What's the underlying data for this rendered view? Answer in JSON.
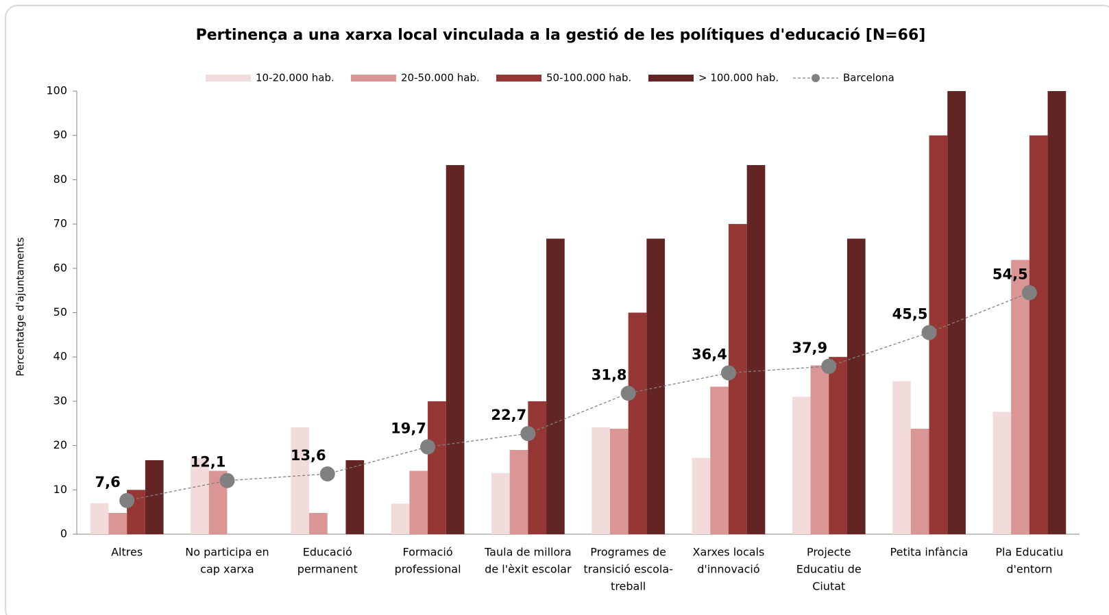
{
  "chart_data": {
    "type": "bar",
    "title": "Pertinença a una xarxa local vinculada a la gestió de les polítiques d'educació  [N=66]",
    "y_label": "Percentatge d'ajuntaments",
    "categories": [
      [
        "Altres"
      ],
      [
        "No participa en",
        "cap xarxa"
      ],
      [
        "Educació",
        "permanent"
      ],
      [
        "Formació",
        "professional"
      ],
      [
        "Taula de millora",
        "de l'èxit escolar"
      ],
      [
        "Programes de",
        "transició escola-",
        "treball"
      ],
      [
        "Xarxes locals",
        "d'innovació"
      ],
      [
        "Projecte",
        "Educatiu de",
        "Ciutat"
      ],
      [
        "Petita infància"
      ],
      [
        "Pla Educatiu",
        "d'entorn"
      ]
    ],
    "series": [
      {
        "name": "10-20.000 hab.",
        "color": "#f2dcdb",
        "values": [
          7.0,
          17.2,
          24.1,
          6.9,
          13.8,
          24.1,
          17.2,
          31.0,
          34.5,
          27.6
        ]
      },
      {
        "name": "20-50.000 hab.",
        "color": "#d99694",
        "values": [
          4.8,
          14.3,
          4.8,
          14.3,
          19.0,
          23.8,
          33.3,
          38.1,
          23.8,
          61.9
        ]
      },
      {
        "name": "50-100.000 hab.",
        "color": "#953735",
        "values": [
          10,
          0,
          0,
          30,
          30,
          50,
          70,
          40,
          90,
          90
        ]
      },
      {
        "name": "> 100.000 hab.",
        "color": "#632523",
        "values": [
          16.7,
          0,
          16.7,
          83.3,
          66.7,
          66.7,
          83.3,
          66.7,
          100,
          100
        ]
      },
      {
        "name": "Barcelona",
        "type": "line",
        "color": "#808080",
        "values": [
          7.6,
          12.1,
          13.6,
          19.7,
          22.7,
          31.8,
          36.4,
          37.9,
          45.5,
          54.5
        ],
        "value_labels": [
          "7,6",
          "12,1",
          "13,6",
          "19,7",
          "22,7",
          "31,8",
          "36,4",
          "37,9",
          "45,5",
          "54,5"
        ]
      }
    ],
    "ylim": [
      0,
      100
    ],
    "yticks": [
      0,
      10,
      20,
      30,
      40,
      50,
      60,
      70,
      80,
      90,
      100
    ],
    "grid": false,
    "legend": "top"
  }
}
